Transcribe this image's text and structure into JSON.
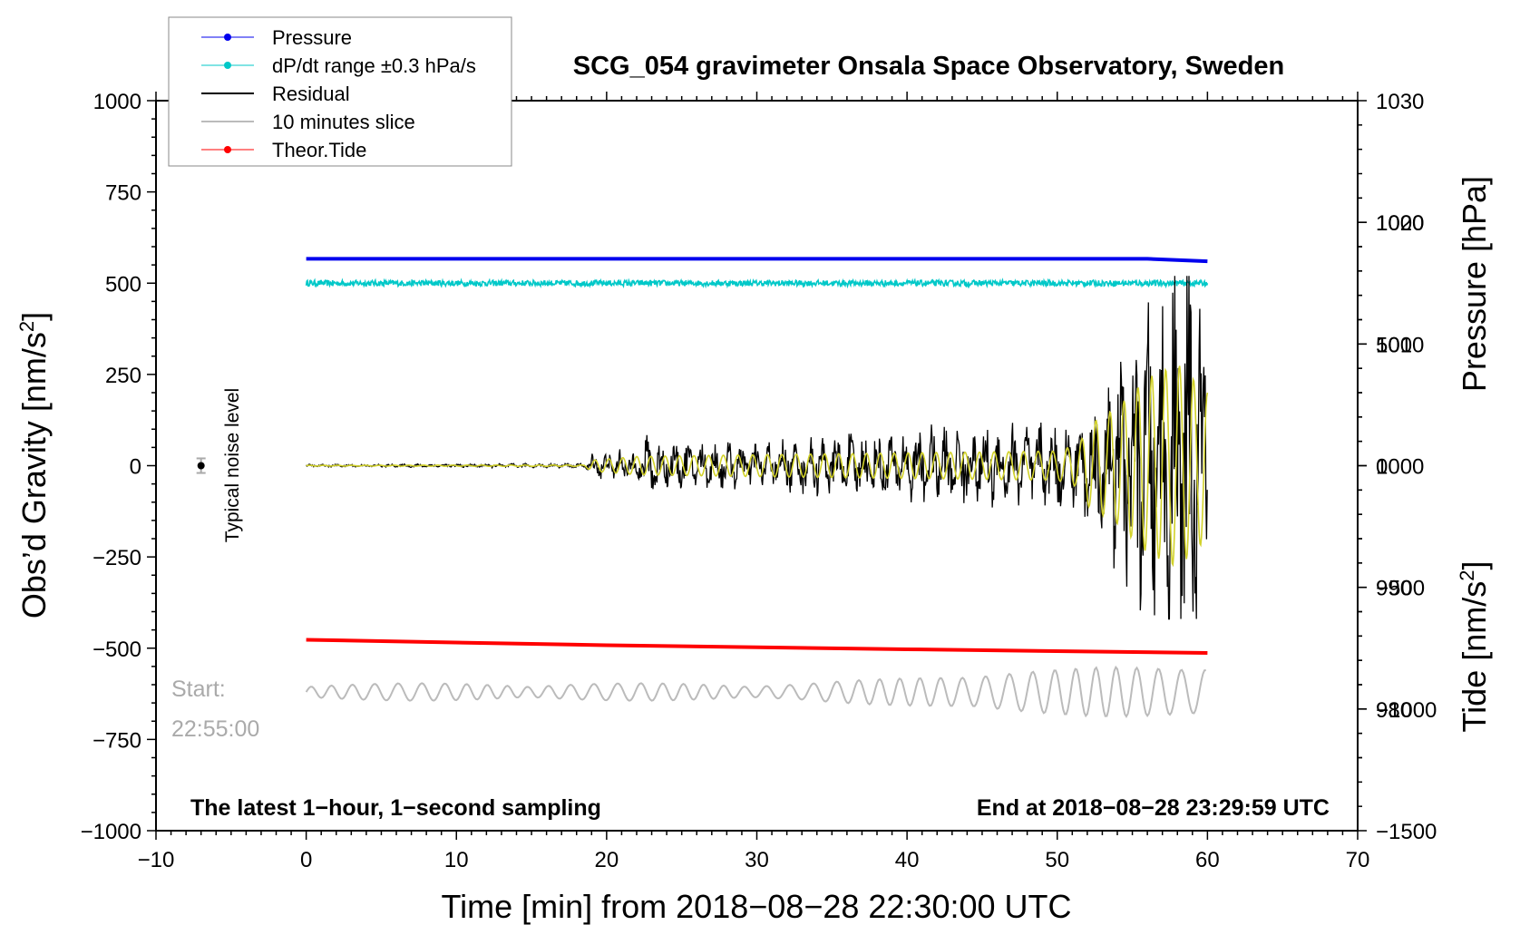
{
  "chart_data": {
    "type": "line",
    "title": "SCG_054 gravimeter Onsala Space Observatory, Sweden",
    "xlabel": "Time [min] from 2018−08−28 22:30:00 UTC",
    "ylabel_left": "Obs’d Gravity [nm/s²]",
    "ylabel_left_base": "Obs’d Gravity [nm/s",
    "ylabel_left_sup": "2",
    "ylabel_left_end": "]",
    "ylabel_right_pressure": "Pressure [hPa]",
    "ylabel_right_tide": "Tide [nm/s²]",
    "ylabel_right_tide_base": "Tide [nm/s",
    "ylabel_right_tide_sup": "2",
    "ylabel_right_tide_end": "]",
    "xlim": [
      -10,
      70
    ],
    "ylim_left": [
      -1000,
      1000
    ],
    "ylim_pressure": [
      970,
      1030
    ],
    "ylim_tide": [
      -1500,
      1500
    ],
    "x_ticks": [
      -10,
      0,
      10,
      20,
      30,
      40,
      50,
      60,
      70
    ],
    "x_tick_labels": [
      "−10",
      "0",
      "10",
      "20",
      "30",
      "40",
      "50",
      "60",
      "70"
    ],
    "y_left_ticks": [
      -1000,
      -750,
      -500,
      -250,
      0,
      250,
      500,
      750,
      1000
    ],
    "y_left_tick_labels": [
      "−1000",
      "−750",
      "−500",
      "−250",
      "0",
      "250",
      "500",
      "750",
      "1000"
    ],
    "pressure_ticks": [
      980,
      990,
      1000,
      1010,
      1020,
      1030
    ],
    "pressure_tick_labels": [
      "980",
      "990",
      "1000",
      "1010",
      "1020",
      "1030"
    ],
    "tide_ticks": [
      -1500,
      -1000,
      -500,
      0,
      500,
      1000
    ],
    "tide_tick_labels": [
      "−1500",
      "−1000",
      "−500",
      "0",
      "500",
      "1000"
    ],
    "legend": [
      {
        "label": "Pressure",
        "color": "#0000ee",
        "marker": true
      },
      {
        "label": "dP/dt range ±0.3 hPa/s",
        "color": "#00c8c8",
        "marker": true
      },
      {
        "label": "Residual",
        "color": "#000000",
        "marker": false
      },
      {
        "label": "10 minutes slice",
        "color": "#bbbbbb",
        "marker": false
      },
      {
        "label": "Theor.Tide",
        "color": "#ff0000",
        "marker": true
      }
    ],
    "series": [
      {
        "name": "Pressure",
        "color": "#0000ee",
        "axis": "pressure",
        "x": [
          0,
          56,
          60
        ],
        "values": [
          1017,
          1017,
          1016.8
        ]
      },
      {
        "name": "dP/dt range ±0.3 hPa/s",
        "color": "#00c8c8",
        "axis": "left",
        "x": [
          0,
          60
        ],
        "values": [
          500,
          500
        ],
        "band": 8
      },
      {
        "name": "Theor.Tide",
        "color": "#ff0000",
        "axis": "left",
        "x": [
          0,
          20,
          40,
          60
        ],
        "values": [
          -477,
          -492,
          -503,
          -513
        ]
      },
      {
        "name": "Residual",
        "color": "#000000",
        "axis": "left",
        "envelope": [
          [
            0,
            3
          ],
          [
            18.5,
            5
          ],
          [
            19,
            30
          ],
          [
            22,
            40
          ],
          [
            23,
            85
          ],
          [
            24,
            50
          ],
          [
            30,
            55
          ],
          [
            35,
            70
          ],
          [
            40,
            85
          ],
          [
            45,
            95
          ],
          [
            50,
            100
          ],
          [
            51.5,
            110
          ],
          [
            52,
            160
          ],
          [
            53,
            210
          ],
          [
            55,
            280
          ],
          [
            57,
            420
          ],
          [
            58.6,
            480
          ],
          [
            59.2,
            470
          ],
          [
            60,
            350
          ]
        ]
      },
      {
        "name": "Residual (filtered)",
        "color": "#d2d22a",
        "axis": "left",
        "envelope": [
          [
            0,
            1
          ],
          [
            18.5,
            2
          ],
          [
            19,
            15
          ],
          [
            22,
            25
          ],
          [
            30,
            30
          ],
          [
            40,
            35
          ],
          [
            50,
            40
          ],
          [
            51.5,
            60
          ],
          [
            52,
            110
          ],
          [
            54,
            160
          ],
          [
            56,
            240
          ],
          [
            58,
            280
          ],
          [
            60,
            200
          ]
        ]
      },
      {
        "name": "10 minutes slice",
        "color": "#bbbbbb",
        "axis": "left",
        "baseline": -620,
        "x_range": [
          0,
          60
        ]
      }
    ],
    "noise_label": "Typical noise level",
    "noise_marker": {
      "x": -7,
      "y": 0,
      "err": 20
    },
    "slice_start_line1": "Start:",
    "slice_start_line2": "22:55:00",
    "annotation_left": "The latest 1−hour, 1−second sampling",
    "annotation_right": "End at 2018−08−28 23:29:59 UTC"
  }
}
